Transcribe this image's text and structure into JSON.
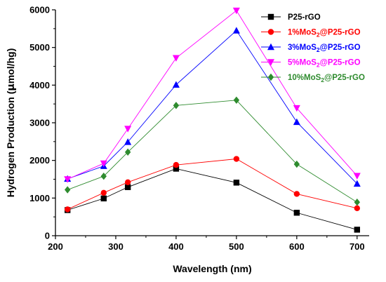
{
  "chart_data": {
    "type": "line",
    "xlabel": "Wavelength (nm)",
    "ylabel_prefix": "Hydrogen Production (",
    "ylabel_mu": "µ",
    "ylabel_suffix": "mol/hg)",
    "xlim": [
      200,
      720
    ],
    "ylim": [
      0,
      6000
    ],
    "xticks": [
      200,
      300,
      400,
      500,
      600,
      700
    ],
    "yticks": [
      0,
      1000,
      2000,
      3000,
      4000,
      5000,
      6000
    ],
    "x": [
      220,
      280,
      320,
      400,
      500,
      600,
      700
    ],
    "legend_position": "top-right",
    "series": [
      {
        "name_prefix": "P25-rGO",
        "name_sub": "",
        "name_suffix": "",
        "color": "#000000",
        "marker": "square",
        "values": [
          680,
          990,
          1290,
          1780,
          1410,
          610,
          160
        ]
      },
      {
        "name_prefix": "1%MoS",
        "name_sub": "2",
        "name_suffix": "@P25-rGO",
        "color": "#ff0000",
        "marker": "circle",
        "values": [
          700,
          1140,
          1420,
          1880,
          2040,
          1110,
          730
        ]
      },
      {
        "name_prefix": "3%MoS",
        "name_sub": "2",
        "name_suffix": "@P25-rGO",
        "color": "#0000ff",
        "marker": "triangle-up",
        "values": [
          1510,
          1850,
          2490,
          4010,
          5450,
          3020,
          1380
        ]
      },
      {
        "name_prefix": "5%MoS",
        "name_sub": "2",
        "name_suffix": "@P25-rGO",
        "color": "#ff00ff",
        "marker": "triangle-down",
        "values": [
          1500,
          1920,
          2840,
          4720,
          5980,
          3390,
          1590
        ]
      },
      {
        "name_prefix": "10%MoS",
        "name_sub": "2",
        "name_suffix": "@P25-rGO",
        "color": "#2e8b2e",
        "marker": "diamond",
        "values": [
          1220,
          1580,
          2220,
          3460,
          3600,
          1900,
          890
        ]
      }
    ]
  }
}
